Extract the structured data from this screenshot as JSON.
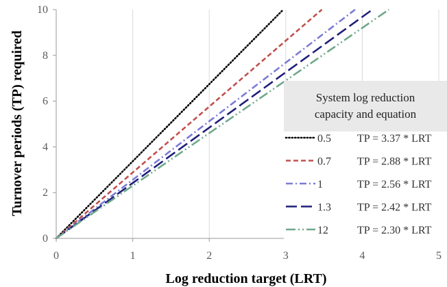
{
  "chart_data": {
    "type": "line",
    "xlabel": "Log reduction target (LRT)",
    "ylabel": "Turnover periods (TP) required",
    "xlim": [
      0,
      5
    ],
    "ylim": [
      0,
      10
    ],
    "x_ticks": [
      "0",
      "1",
      "2",
      "3",
      "4",
      "5"
    ],
    "y_ticks": [
      "0",
      "2",
      "4",
      "6",
      "8",
      "10"
    ],
    "grid": "vertical",
    "legend": {
      "placement": "right",
      "title": [
        "System log reduction",
        "capacity and equation"
      ]
    },
    "series": [
      {
        "name": "0.5",
        "equation": "TP = 3.37 * LRT",
        "slope": 3.37,
        "color": "#000000",
        "dash": "dotted"
      },
      {
        "name": "0.7",
        "equation": "TP = 2.88 * LRT",
        "slope": 2.88,
        "color": "#c0504d",
        "dash": "dashed"
      },
      {
        "name": "1",
        "equation": "TP = 2.56 * LRT",
        "slope": 2.56,
        "color": "#7b7bd6",
        "dash": "dash-dot"
      },
      {
        "name": "1.3",
        "equation": "TP = 2.42 * LRT",
        "slope": 2.42,
        "color": "#1f1f7a",
        "dash": "long-dash"
      },
      {
        "name": "12",
        "equation": "TP = 2.30 * LRT",
        "slope": 2.3,
        "color": "#6fa88a",
        "dash": "long-dash-dot-dot"
      }
    ]
  }
}
